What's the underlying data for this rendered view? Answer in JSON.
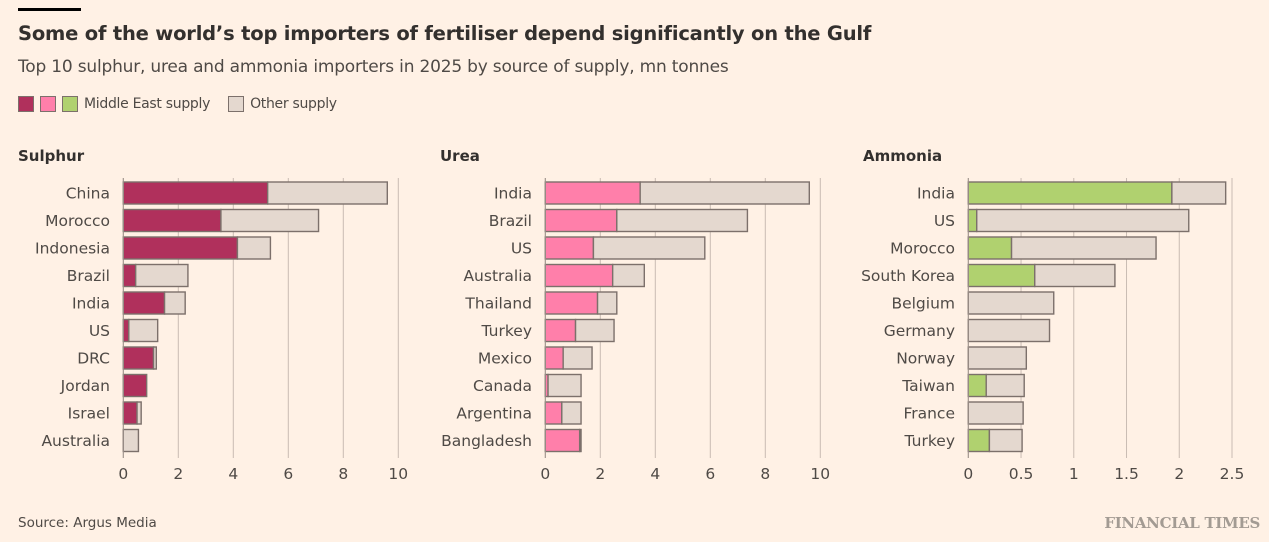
{
  "header": {
    "title": "Some of the world’s top importers of fertiliser depend significantly on the Gulf",
    "subtitle": "Top 10 sulphur, urea and ammonia importers in 2025 by source of supply, mn tonnes"
  },
  "legend": {
    "middle_east_label": "Middle East supply",
    "other_label": "Other supply",
    "middle_east_colors": [
      "#b0305c",
      "#ff7faa",
      "#b0d16f"
    ],
    "other_color": "#e4d8cf"
  },
  "footer": {
    "source": "Source: Argus Media",
    "brand": "FINANCIAL TIMES"
  },
  "chart_data": [
    {
      "type": "bar",
      "orientation": "horizontal",
      "stacked": true,
      "title": "Sulphur",
      "xlabel": "",
      "ylabel": "",
      "xlim": [
        0,
        10
      ],
      "xticks": [
        0,
        2,
        4,
        6,
        8,
        10
      ],
      "xtick_labels": [
        "0",
        "2",
        "4",
        "6",
        "8",
        "10"
      ],
      "grid": true,
      "categories": [
        "China",
        "Morocco",
        "Indonesia",
        "Brazil",
        "India",
        "US",
        "DRC",
        "Jordan",
        "Israel",
        "Australia"
      ],
      "series": [
        {
          "name": "Middle East supply",
          "color": "#b0305c",
          "values": [
            5.25,
            3.55,
            4.15,
            0.45,
            1.5,
            0.2,
            1.1,
            0.85,
            0.5,
            0
          ]
        },
        {
          "name": "Other supply",
          "color": "#e4d8cf",
          "values": [
            4.35,
            3.55,
            1.2,
            1.9,
            0.75,
            1.05,
            0.1,
            0,
            0.15,
            0.55
          ]
        }
      ]
    },
    {
      "type": "bar",
      "orientation": "horizontal",
      "stacked": true,
      "title": "Urea",
      "xlabel": "",
      "ylabel": "",
      "xlim": [
        0,
        10
      ],
      "xticks": [
        0,
        2,
        4,
        6,
        8,
        10
      ],
      "xtick_labels": [
        "0",
        "2",
        "4",
        "6",
        "8",
        "10"
      ],
      "grid": true,
      "categories": [
        "India",
        "Brazil",
        "US",
        "Australia",
        "Thailand",
        "Turkey",
        "Mexico",
        "Canada",
        "Argentina",
        "Bangladesh"
      ],
      "series": [
        {
          "name": "Middle East supply",
          "color": "#ff7faa",
          "values": [
            3.45,
            2.6,
            1.75,
            2.45,
            1.9,
            1.1,
            0.65,
            0.1,
            0.6,
            1.25
          ]
        },
        {
          "name": "Other supply",
          "color": "#e4d8cf",
          "values": [
            6.15,
            4.75,
            4.05,
            1.15,
            0.7,
            1.4,
            1.05,
            1.2,
            0.7,
            0.05
          ]
        }
      ]
    },
    {
      "type": "bar",
      "orientation": "horizontal",
      "stacked": true,
      "title": "Ammonia",
      "xlabel": "",
      "ylabel": "",
      "xlim": [
        0,
        2.5
      ],
      "xticks": [
        0,
        0.5,
        1,
        1.5,
        2,
        2.5
      ],
      "xtick_labels": [
        "0",
        "0.5",
        "1",
        "1.5",
        "2",
        "2.5"
      ],
      "grid": true,
      "categories": [
        "India",
        "US",
        "Morocco",
        "South Korea",
        "Belgium",
        "Germany",
        "Norway",
        "Taiwan",
        "France",
        "Turkey"
      ],
      "series": [
        {
          "name": "Middle East supply",
          "color": "#b0d16f",
          "values": [
            1.93,
            0.08,
            0.41,
            0.63,
            0,
            0,
            0,
            0.17,
            0,
            0.2
          ]
        },
        {
          "name": "Other supply",
          "color": "#e4d8cf",
          "values": [
            0.51,
            2.01,
            1.37,
            0.76,
            0.81,
            0.77,
            0.55,
            0.36,
            0.52,
            0.31
          ]
        }
      ]
    }
  ]
}
